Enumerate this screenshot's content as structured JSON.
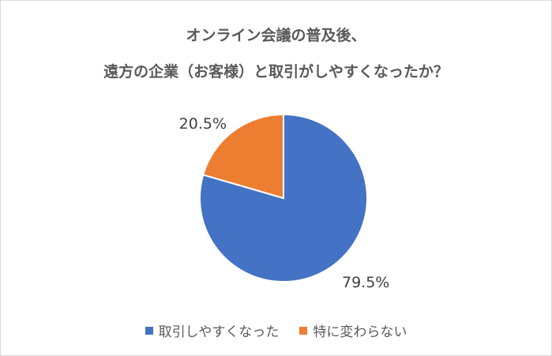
{
  "chart_data": {
    "type": "pie",
    "title_lines": [
      "オンライン会議の普及後、",
      "遠方の企業（お客様）と取引がしやすくなったか？"
    ],
    "categories": [
      "取引しやすくなった",
      "特に変わらない"
    ],
    "values": [
      79.5,
      20.5
    ],
    "data_labels": [
      "79.5%",
      "20.5%"
    ],
    "colors": [
      "#4472c4",
      "#ed7d31"
    ],
    "legend_position": "bottom",
    "start_angle_deg": 0,
    "direction": "clockwise"
  }
}
